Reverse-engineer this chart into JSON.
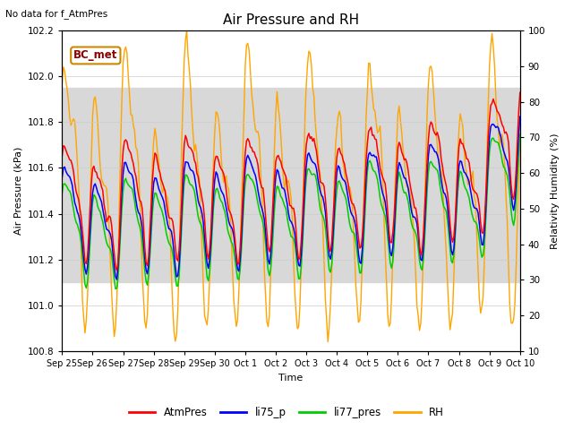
{
  "title": "Air Pressure and RH",
  "top_left_text": "No data for f_AtmPres",
  "box_label": "BC_met",
  "xlabel": "Time",
  "ylabel_left": "Air Pressure (kPa)",
  "ylabel_right": "Relativity Humidity (%)",
  "ylim_left": [
    100.8,
    102.2
  ],
  "ylim_right": [
    10,
    100
  ],
  "yticks_left": [
    100.8,
    101.0,
    101.2,
    101.4,
    101.6,
    101.8,
    102.0,
    102.2
  ],
  "yticks_right": [
    10,
    20,
    30,
    40,
    50,
    60,
    70,
    80,
    90,
    100
  ],
  "xtick_labels": [
    "Sep 25",
    "Sep 26",
    "Sep 27",
    "Sep 28",
    "Sep 29",
    "Sep 30",
    "Oct 1",
    "Oct 2",
    "Oct 3",
    "Oct 4",
    "Oct 5",
    "Oct 6",
    "Oct 7",
    "Oct 8",
    "Oct 9",
    "Oct 10"
  ],
  "colors": {
    "AtmPres": "#ff0000",
    "li75_p": "#0000ff",
    "li77_pres": "#00cc00",
    "RH": "#ffa500"
  },
  "background_color": "#ffffff",
  "plot_bg_color": "#ffffff",
  "shaded_band": [
    101.1,
    101.95
  ],
  "shaded_band_color": "#d8d8d8",
  "figsize": [
    6.4,
    4.8
  ],
  "dpi": 100
}
